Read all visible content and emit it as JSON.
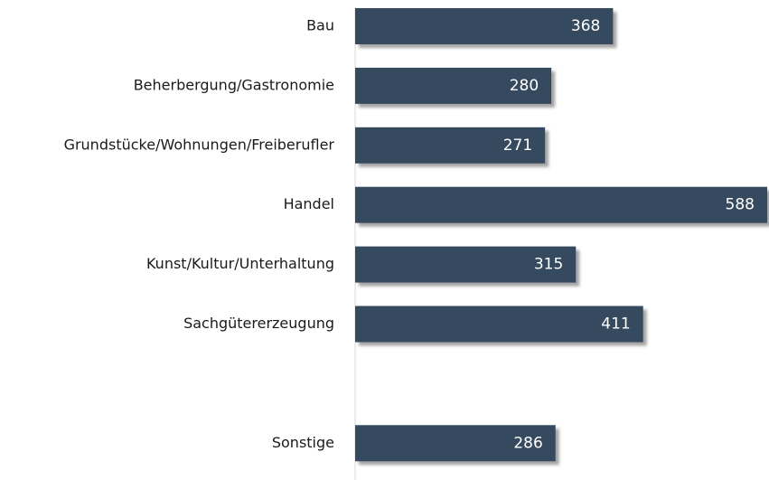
{
  "chart_data": {
    "type": "bar",
    "orientation": "horizontal",
    "categories": [
      "Bau",
      "Beherbergung/Gastronomie",
      "Grundstücke/Wohnungen/Freiberufler",
      "Handel",
      "Kunst/Kultur/Unterhaltung",
      "Sachgütererzeugung",
      null,
      "Sonstige"
    ],
    "values": [
      368,
      280,
      271,
      588,
      315,
      411,
      null,
      286
    ],
    "color": "#344a5f"
  }
}
